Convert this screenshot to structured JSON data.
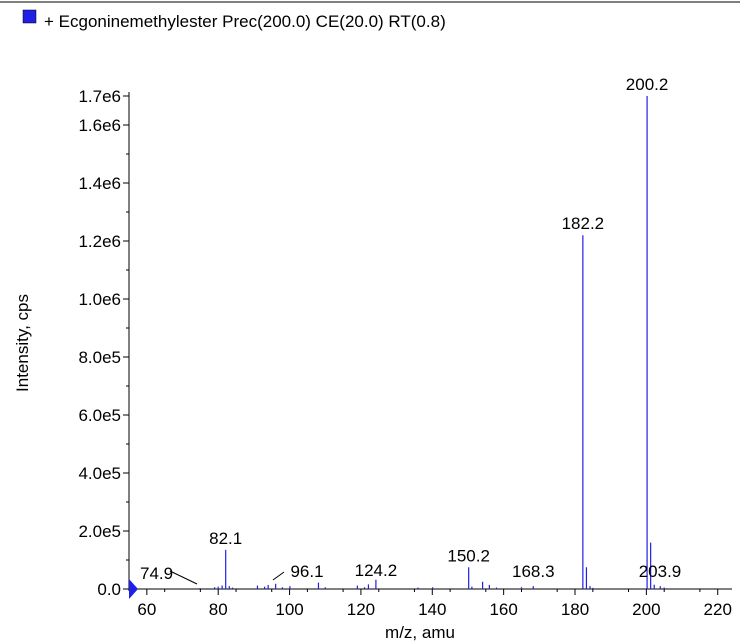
{
  "legend": {
    "swatch_color": "#1f1fe6",
    "label": "+ Ecgoninemethylester Prec(200.0) CE(20.0) RT(0.8)"
  },
  "chart_data": {
    "type": "bar",
    "title": "",
    "xlabel": "m/z, amu",
    "ylabel": "Intensity, cps",
    "xlim": [
      55,
      224
    ],
    "ylim": [
      0,
      1750000
    ],
    "x_ticks": [
      60,
      80,
      100,
      120,
      140,
      160,
      180,
      200,
      220
    ],
    "y_ticks": [
      {
        "value": 0,
        "label": "0.0"
      },
      {
        "value": 200000,
        "label": "2.0e5"
      },
      {
        "value": 400000,
        "label": "4.0e5"
      },
      {
        "value": 600000,
        "label": "6.0e5"
      },
      {
        "value": 800000,
        "label": "8.0e5"
      },
      {
        "value": 1000000,
        "label": "1.0e6"
      },
      {
        "value": 1200000,
        "label": "1.2e6"
      },
      {
        "value": 1400000,
        "label": "1.4e6"
      },
      {
        "value": 1600000,
        "label": "1.6e6"
      },
      {
        "value": 1700000,
        "label": "1.7e6"
      }
    ],
    "series_color": "#1f1fe6",
    "grid": false,
    "peaks": [
      {
        "mz": 74.9,
        "intensity": 3000
      },
      {
        "mz": 79.0,
        "intensity": 6000
      },
      {
        "mz": 80.0,
        "intensity": 8000
      },
      {
        "mz": 81.1,
        "intensity": 12000
      },
      {
        "mz": 82.1,
        "intensity": 135000
      },
      {
        "mz": 83.1,
        "intensity": 10000
      },
      {
        "mz": 84.0,
        "intensity": 5000
      },
      {
        "mz": 91.0,
        "intensity": 12000
      },
      {
        "mz": 93.0,
        "intensity": 8000
      },
      {
        "mz": 94.0,
        "intensity": 14000
      },
      {
        "mz": 96.1,
        "intensity": 18000
      },
      {
        "mz": 98.0,
        "intensity": 6000
      },
      {
        "mz": 100.1,
        "intensity": 10000
      },
      {
        "mz": 108.1,
        "intensity": 22000
      },
      {
        "mz": 110.0,
        "intensity": 6000
      },
      {
        "mz": 119.0,
        "intensity": 12000
      },
      {
        "mz": 121.0,
        "intensity": 6000
      },
      {
        "mz": 122.1,
        "intensity": 16000
      },
      {
        "mz": 124.2,
        "intensity": 32000
      },
      {
        "mz": 136.0,
        "intensity": 5000
      },
      {
        "mz": 140.1,
        "intensity": 6000
      },
      {
        "mz": 150.2,
        "intensity": 75000
      },
      {
        "mz": 151.1,
        "intensity": 8000
      },
      {
        "mz": 154.1,
        "intensity": 25000
      },
      {
        "mz": 156.0,
        "intensity": 14000
      },
      {
        "mz": 158.0,
        "intensity": 5000
      },
      {
        "mz": 165.0,
        "intensity": 6000
      },
      {
        "mz": 168.3,
        "intensity": 10000
      },
      {
        "mz": 182.2,
        "intensity": 1220000
      },
      {
        "mz": 183.2,
        "intensity": 75000
      },
      {
        "mz": 184.2,
        "intensity": 10000
      },
      {
        "mz": 185.0,
        "intensity": 4000
      },
      {
        "mz": 200.2,
        "intensity": 1700000
      },
      {
        "mz": 201.2,
        "intensity": 160000
      },
      {
        "mz": 202.2,
        "intensity": 15000
      },
      {
        "mz": 203.9,
        "intensity": 10000
      },
      {
        "mz": 205.0,
        "intensity": 5000
      }
    ],
    "annotations": [
      {
        "label": "200.2",
        "mz": 200.2,
        "intensity": 1700000
      },
      {
        "label": "182.2",
        "mz": 182.2,
        "intensity": 1220000
      },
      {
        "label": "82.1",
        "mz": 82.1,
        "intensity": 135000
      },
      {
        "label": "150.2",
        "mz": 150.2,
        "intensity": 75000
      },
      {
        "label": "124.2",
        "mz": 124.2,
        "intensity": 32000
      },
      {
        "label": "96.1",
        "mz": 96.1,
        "intensity": 18000,
        "leader": true
      },
      {
        "label": "168.3",
        "mz": 168.3,
        "intensity": 10000
      },
      {
        "label": "203.9",
        "mz": 203.9,
        "intensity": 10000
      },
      {
        "label": "74.9",
        "mz": 74.9,
        "intensity": 3000,
        "leader": true
      }
    ]
  }
}
